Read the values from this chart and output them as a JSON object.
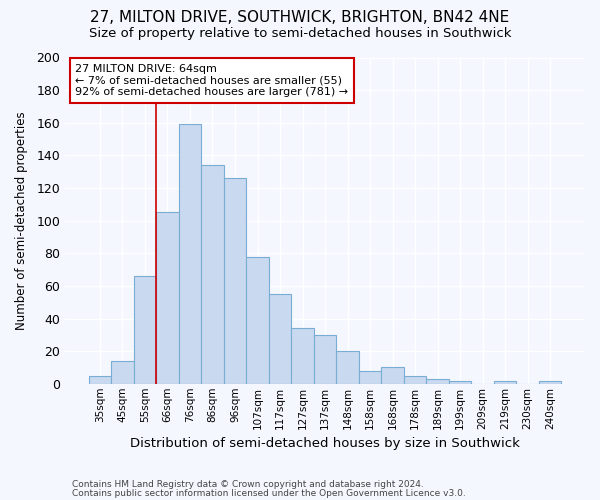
{
  "title1": "27, MILTON DRIVE, SOUTHWICK, BRIGHTON, BN42 4NE",
  "title2": "Size of property relative to semi-detached houses in Southwick",
  "xlabel": "Distribution of semi-detached houses by size in Southwick",
  "ylabel": "Number of semi-detached properties",
  "footnote1": "Contains HM Land Registry data © Crown copyright and database right 2024.",
  "footnote2": "Contains public sector information licensed under the Open Government Licence v3.0.",
  "bar_labels": [
    "35sqm",
    "45sqm",
    "55sqm",
    "66sqm",
    "76sqm",
    "86sqm",
    "96sqm",
    "107sqm",
    "117sqm",
    "127sqm",
    "137sqm",
    "148sqm",
    "158sqm",
    "168sqm",
    "178sqm",
    "189sqm",
    "199sqm",
    "209sqm",
    "219sqm",
    "230sqm",
    "240sqm"
  ],
  "bar_values": [
    5,
    14,
    66,
    105,
    159,
    134,
    126,
    78,
    55,
    34,
    30,
    20,
    8,
    10,
    5,
    3,
    2,
    0,
    2,
    0,
    2
  ],
  "bar_color": "#c9d9ef",
  "bar_edge_color": "#7aadd4",
  "vline_x": 3,
  "vline_color": "#cc0000",
  "annotation_title": "27 MILTON DRIVE: 64sqm",
  "annotation_line1": "← 7% of semi-detached houses are smaller (55)",
  "annotation_line2": "92% of semi-detached houses are larger (781) →",
  "annotation_box_color": "white",
  "annotation_box_edge": "#cc0000",
  "ylim": [
    0,
    200
  ],
  "yticks": [
    0,
    20,
    40,
    60,
    80,
    100,
    120,
    140,
    160,
    180,
    200
  ],
  "bg_color": "#f5f7ff",
  "grid_color": "#ffffff",
  "title1_fontsize": 11,
  "title2_fontsize": 9.5
}
